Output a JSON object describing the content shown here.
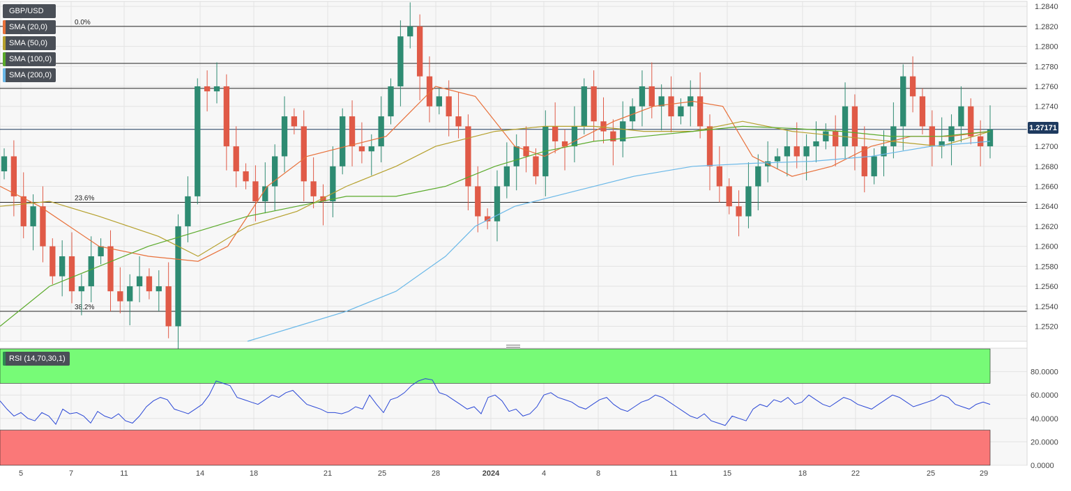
{
  "legend": {
    "symbol": "GBP/USD",
    "indicators": [
      {
        "label": "SMA (20,0)",
        "color": "#e8703a"
      },
      {
        "label": "SMA (50,0)",
        "color": "#b5a02c"
      },
      {
        "label": "SMA (100,0)",
        "color": "#5aaa2a"
      },
      {
        "label": "SMA (200,0)",
        "color": "#6ab8e8"
      }
    ],
    "symbol_color": "#4a4f57"
  },
  "last_price": "1.27171",
  "rsi_label": "RSI (14,70,30,1)",
  "colors": {
    "up": "#2e8b72",
    "down": "#e05a47",
    "rsi_line": "#2b48d6",
    "overbought": "#77fb77",
    "oversold": "#fa7878",
    "price_line": "#1e3a5f"
  },
  "chart_data": [
    {
      "type": "candlestick",
      "title": "GBP/USD",
      "x_ticks": [
        "5",
        "7",
        "11",
        "14",
        "18",
        "21",
        "25",
        "28",
        "2024",
        "4",
        "8",
        "11",
        "15",
        "18",
        "22",
        "25",
        "29"
      ],
      "y_ticks": [
        "1.2840",
        "1.2820",
        "1.2800",
        "1.2780",
        "1.2760",
        "1.2740",
        "1.2720",
        "1.2700",
        "1.2680",
        "1.2660",
        "1.2640",
        "1.2620",
        "1.2600",
        "1.2580",
        "1.2560",
        "1.2540",
        "1.2520"
      ],
      "ylim": [
        1.2505,
        1.2845
      ],
      "fib_levels": [
        {
          "label": "0.0%",
          "value": 1.282
        },
        {
          "label": "23.6%",
          "value": 1.2644
        },
        {
          "label": "38.2%",
          "value": 1.2535
        }
      ],
      "extra_levels": [
        1.2783,
        1.2758,
        1.2717
      ],
      "close_path": [
        1.269,
        1.265,
        1.262,
        1.264,
        1.26,
        1.257,
        1.259,
        1.2555,
        1.256,
        1.259,
        1.26,
        1.2555,
        1.2545,
        1.256,
        1.257,
        1.2555,
        1.256,
        1.252,
        1.262,
        1.265,
        1.276,
        1.2755,
        1.276,
        1.27,
        1.2675,
        1.2665,
        1.2645,
        1.266,
        1.269,
        1.273,
        1.272,
        1.2665,
        1.265,
        1.2645,
        1.268,
        1.273,
        1.27,
        1.2695,
        1.27,
        1.273,
        1.276,
        1.281,
        1.282,
        1.277,
        1.274,
        1.275,
        1.273,
        1.272,
        1.266,
        1.263,
        1.2625,
        1.266,
        1.268,
        1.27,
        1.269,
        1.267,
        1.272,
        1.2705,
        1.27,
        1.272,
        1.276,
        1.2725,
        1.2715,
        1.2705,
        1.2725,
        1.274,
        1.276,
        1.274,
        1.275,
        1.273,
        1.274,
        1.275,
        1.272,
        1.268,
        1.266,
        1.264,
        1.263,
        1.266,
        1.268,
        1.2685,
        1.269,
        1.27,
        1.269,
        1.27,
        1.2705,
        1.2715,
        1.27,
        1.274,
        1.27,
        1.267,
        1.269,
        1.27,
        1.272,
        1.277,
        1.275,
        1.272,
        1.27,
        1.2705,
        1.272,
        1.274,
        1.271,
        1.27,
        1.2717
      ],
      "series": [
        {
          "name": "SMA (20,0)",
          "points": [
            [
              0,
              1.266
            ],
            [
              0.04,
              1.264
            ],
            [
              0.1,
              1.26
            ],
            [
              0.15,
              1.259
            ],
            [
              0.2,
              1.2585
            ],
            [
              0.23,
              1.26
            ],
            [
              0.27,
              1.266
            ],
            [
              0.31,
              1.269
            ],
            [
              0.35,
              1.27
            ],
            [
              0.39,
              1.271
            ],
            [
              0.44,
              1.276
            ],
            [
              0.48,
              1.275
            ],
            [
              0.52,
              1.27
            ],
            [
              0.55,
              1.269
            ],
            [
              0.58,
              1.2705
            ],
            [
              0.62,
              1.2725
            ],
            [
              0.66,
              1.274
            ],
            [
              0.7,
              1.2745
            ],
            [
              0.73,
              1.274
            ],
            [
              0.76,
              1.269
            ],
            [
              0.8,
              1.267
            ],
            [
              0.84,
              1.268
            ],
            [
              0.88,
              1.27
            ],
            [
              0.92,
              1.271
            ],
            [
              0.96,
              1.271
            ],
            [
              1.0,
              1.2715
            ]
          ]
        },
        {
          "name": "SMA (50,0)",
          "points": [
            [
              0,
              1.264
            ],
            [
              0.05,
              1.2645
            ],
            [
              0.1,
              1.263
            ],
            [
              0.16,
              1.261
            ],
            [
              0.2,
              1.259
            ],
            [
              0.25,
              1.262
            ],
            [
              0.3,
              1.2635
            ],
            [
              0.35,
              1.266
            ],
            [
              0.4,
              1.268
            ],
            [
              0.44,
              1.27
            ],
            [
              0.5,
              1.2715
            ],
            [
              0.55,
              1.272
            ],
            [
              0.6,
              1.272
            ],
            [
              0.65,
              1.2715
            ],
            [
              0.7,
              1.2715
            ],
            [
              0.75,
              1.2725
            ],
            [
              0.8,
              1.2715
            ],
            [
              0.85,
              1.271
            ],
            [
              0.9,
              1.2705
            ],
            [
              0.95,
              1.27
            ],
            [
              1.0,
              1.2715
            ]
          ]
        },
        {
          "name": "SMA (100,0)",
          "points": [
            [
              0,
              1.252
            ],
            [
              0.05,
              1.256
            ],
            [
              0.1,
              1.258
            ],
            [
              0.15,
              1.26
            ],
            [
              0.2,
              1.2615
            ],
            [
              0.25,
              1.263
            ],
            [
              0.3,
              1.264
            ],
            [
              0.35,
              1.265
            ],
            [
              0.4,
              1.265
            ],
            [
              0.45,
              1.266
            ],
            [
              0.5,
              1.268
            ],
            [
              0.55,
              1.2695
            ],
            [
              0.6,
              1.2705
            ],
            [
              0.65,
              1.271
            ],
            [
              0.7,
              1.2715
            ],
            [
              0.75,
              1.272
            ],
            [
              0.8,
              1.2718
            ],
            [
              0.85,
              1.2715
            ],
            [
              0.9,
              1.271
            ],
            [
              0.95,
              1.271
            ],
            [
              1.0,
              1.2715
            ]
          ]
        },
        {
          "name": "SMA (200,0)",
          "points": [
            [
              0.25,
              1.2505
            ],
            [
              0.3,
              1.252
            ],
            [
              0.35,
              1.2535
            ],
            [
              0.4,
              1.2555
            ],
            [
              0.45,
              1.259
            ],
            [
              0.48,
              1.262
            ],
            [
              0.52,
              1.264
            ],
            [
              0.58,
              1.2655
            ],
            [
              0.64,
              1.267
            ],
            [
              0.7,
              1.268
            ],
            [
              0.76,
              1.2683
            ],
            [
              0.82,
              1.2685
            ],
            [
              0.88,
              1.269
            ],
            [
              0.94,
              1.27
            ],
            [
              1.0,
              1.2705
            ]
          ]
        }
      ]
    },
    {
      "type": "line",
      "title": "RSI (14,70,30,1)",
      "y_ticks": [
        "80.0000",
        "60.0000",
        "40.0000",
        "20.0000",
        "0.0000"
      ],
      "ylim": [
        0,
        100
      ],
      "overbought": 70,
      "oversold": 30,
      "series": [
        {
          "name": "RSI",
          "values": [
            55,
            48,
            42,
            45,
            40,
            38,
            45,
            42,
            35,
            48,
            44,
            45,
            42,
            36,
            46,
            42,
            40,
            44,
            38,
            36,
            42,
            50,
            55,
            58,
            56,
            48,
            46,
            44,
            48,
            52,
            60,
            72,
            70,
            68,
            58,
            56,
            54,
            52,
            56,
            60,
            58,
            62,
            64,
            58,
            52,
            50,
            48,
            45,
            45,
            44,
            46,
            50,
            48,
            60,
            52,
            45,
            56,
            58,
            62,
            68,
            72,
            74,
            73,
            62,
            60,
            56,
            52,
            48,
            50,
            44,
            58,
            60,
            55,
            46,
            48,
            42,
            44,
            50,
            60,
            62,
            58,
            56,
            54,
            50,
            48,
            52,
            56,
            58,
            52,
            48,
            46,
            50,
            54,
            56,
            60,
            58,
            54,
            50,
            46,
            42,
            40,
            44,
            38,
            36,
            34,
            42,
            40,
            38,
            48,
            52,
            50,
            56,
            54,
            58,
            52,
            54,
            60,
            56,
            52,
            50,
            54,
            58,
            56,
            52,
            50,
            48,
            52,
            56,
            60,
            58,
            54,
            50,
            52,
            54,
            56,
            60,
            58,
            52,
            50,
            48,
            52,
            54,
            52
          ]
        }
      ]
    }
  ]
}
